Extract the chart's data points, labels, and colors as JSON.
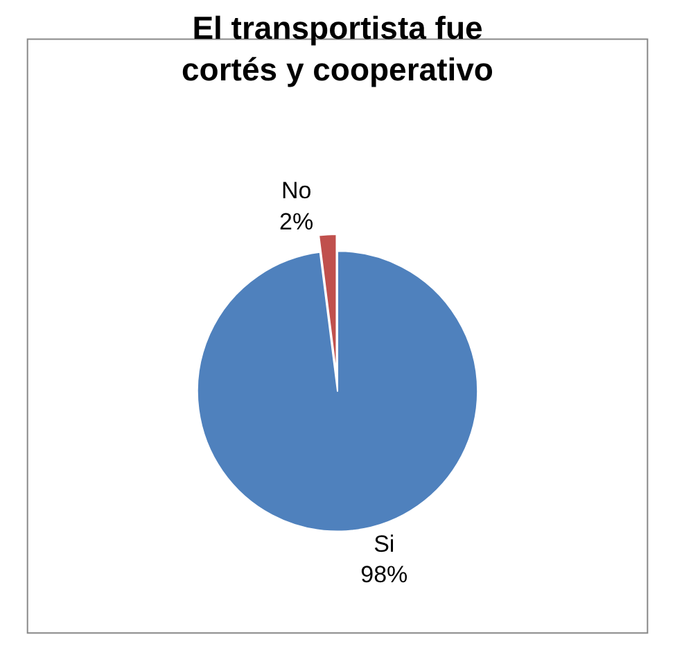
{
  "chart_data": {
    "type": "pie",
    "title": "El transportista fue\ncortés y cooperativo",
    "categories": [
      "Si",
      "No"
    ],
    "values": [
      98,
      2
    ],
    "value_labels": [
      "98%",
      "2%"
    ],
    "colors": [
      "#4f81bd",
      "#c0504d"
    ],
    "legend": false
  }
}
